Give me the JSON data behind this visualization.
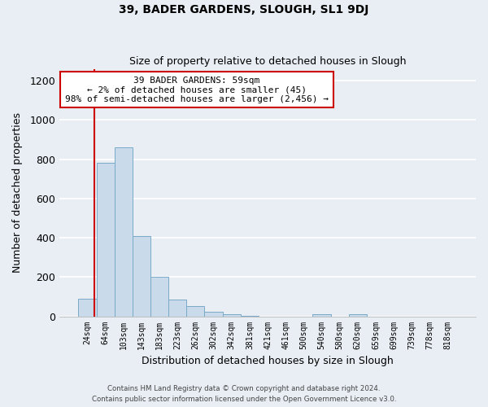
{
  "title": "39, BADER GARDENS, SLOUGH, SL1 9DJ",
  "subtitle": "Size of property relative to detached houses in Slough",
  "xlabel": "Distribution of detached houses by size in Slough",
  "ylabel": "Number of detached properties",
  "bar_labels": [
    "24sqm",
    "64sqm",
    "103sqm",
    "143sqm",
    "183sqm",
    "223sqm",
    "262sqm",
    "302sqm",
    "342sqm",
    "381sqm",
    "421sqm",
    "461sqm",
    "500sqm",
    "540sqm",
    "580sqm",
    "620sqm",
    "659sqm",
    "699sqm",
    "739sqm",
    "778sqm",
    "818sqm"
  ],
  "bar_values": [
    90,
    780,
    860,
    410,
    200,
    85,
    50,
    22,
    10,
    3,
    0,
    0,
    0,
    10,
    0,
    10,
    0,
    0,
    0,
    0,
    0
  ],
  "bar_color": "#c9daea",
  "bar_edge_color": "#7aaac8",
  "ylim": [
    0,
    1260
  ],
  "yticks": [
    0,
    200,
    400,
    600,
    800,
    1000,
    1200
  ],
  "annotation_text": "39 BADER GARDENS: 59sqm\n← 2% of detached houses are smaller (45)\n98% of semi-detached houses are larger (2,456) →",
  "annotation_box_color": "#ffffff",
  "annotation_box_edge": "#cc0000",
  "line_color": "#cc0000",
  "footer_line1": "Contains HM Land Registry data © Crown copyright and database right 2024.",
  "footer_line2": "Contains public sector information licensed under the Open Government Licence v3.0.",
  "background_color": "#e8eef4",
  "grid_color": "#ffffff"
}
